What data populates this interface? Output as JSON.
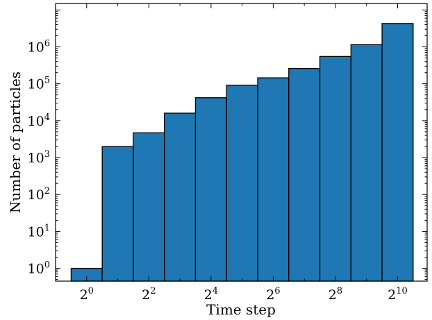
{
  "chart_data": {
    "type": "bar",
    "title": "",
    "xlabel": "Time step",
    "ylabel": "Number of particles",
    "x_scale": "log2",
    "y_scale": "log10",
    "x_tick_base": "2",
    "x_tick_exponents": [
      "0",
      "2",
      "4",
      "6",
      "8",
      "10"
    ],
    "y_tick_base": "10",
    "y_tick_exponents": [
      "0",
      "1",
      "2",
      "3",
      "4",
      "5",
      "6"
    ],
    "categories": [
      "1",
      "2",
      "4",
      "8",
      "16",
      "32",
      "64",
      "128",
      "256",
      "512",
      "1024"
    ],
    "values": [
      1,
      2000,
      4700,
      16000,
      42000,
      92000,
      145000,
      260000,
      550000,
      1150000,
      4300000
    ],
    "ylim": [
      0.45,
      15000000
    ],
    "grid": false,
    "bar_color": "#1f77b4",
    "edge_color": "#000000"
  }
}
